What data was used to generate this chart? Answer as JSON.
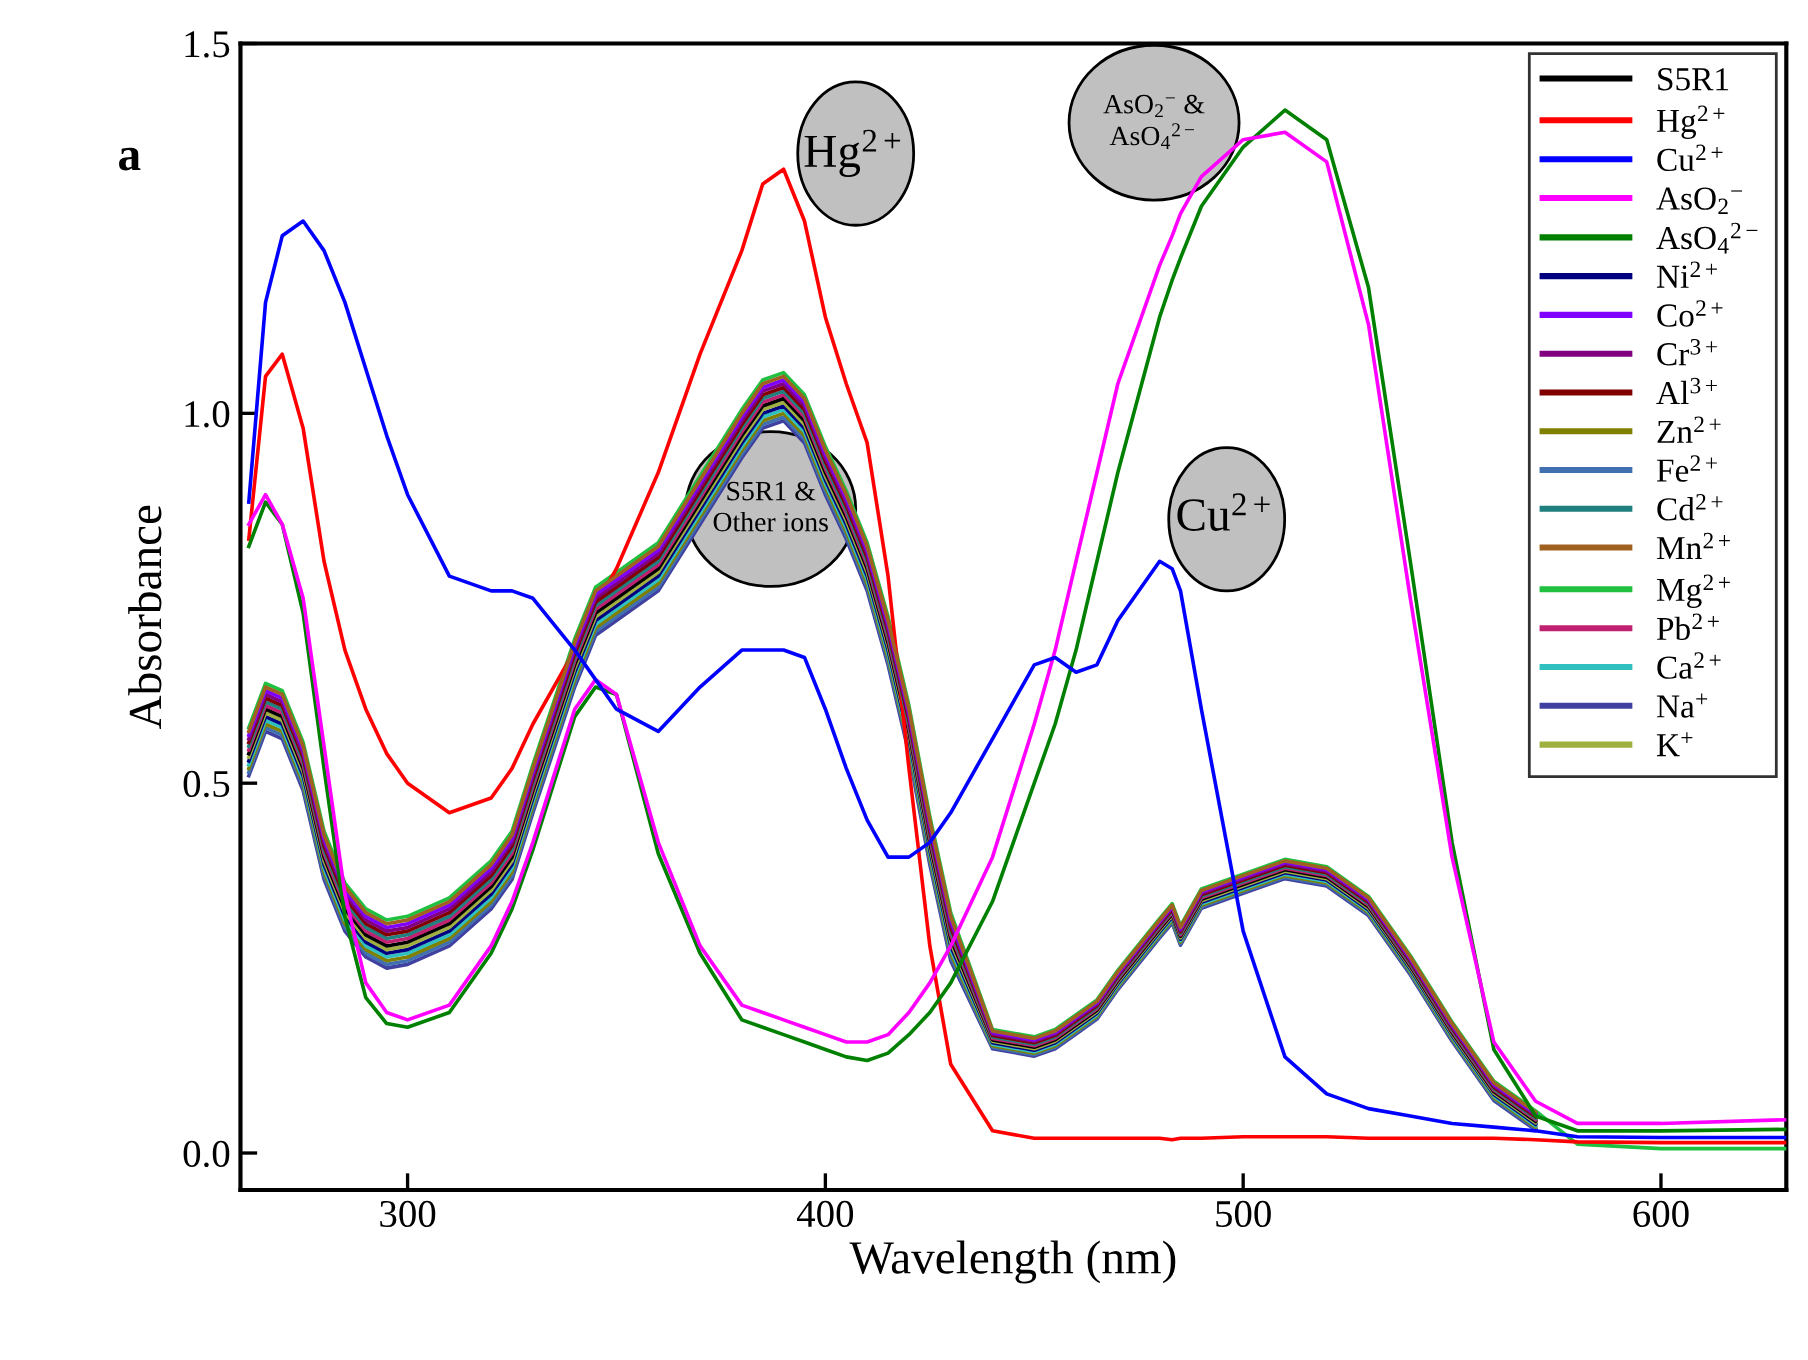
{
  "chart_data": {
    "type": "line",
    "xlabel": "Wavelength (nm)",
    "ylabel": "Absorbance",
    "xlim": [
      260,
      630
    ],
    "ylim": [
      -0.05,
      1.5
    ],
    "xticks": [
      300,
      400,
      500,
      600
    ],
    "yticks": [
      {
        "value": 0,
        "label": "0.0"
      },
      {
        "value": 0.5,
        "label": "0.5"
      },
      {
        "value": 1.0,
        "label": "1.0"
      },
      {
        "value": 1.5,
        "label": "1.5"
      }
    ],
    "grid": false,
    "legend": "top right",
    "marker": "none",
    "line_style": "solid",
    "annotations": [
      "a",
      "Hg$^{2+}$",
      "AsO$_{2}$$^{−}$ &\nAsO$_{4}$$^{2−}$",
      "S5R1 &\nOther ions",
      "Cu$^{2+}$"
    ],
    "x": [
      262,
      266,
      270,
      275,
      280,
      285,
      290,
      295,
      300,
      310,
      320,
      325,
      330,
      340,
      345,
      350,
      360,
      370,
      380,
      385,
      390,
      395,
      400,
      405,
      410,
      415,
      420,
      425,
      430,
      440,
      450,
      455,
      460,
      465,
      470,
      480,
      483,
      485,
      490,
      500,
      510,
      520,
      530,
      540,
      550,
      560,
      570,
      580,
      600,
      630
    ],
    "series": [
      {
        "name": "S5R1",
        "color": "#000000",
        "values": [
          0.54,
          0.6,
          0.59,
          0.52,
          0.4,
          0.33,
          0.295,
          0.28,
          0.285,
          0.31,
          0.36,
          0.4,
          0.49,
          0.66,
          0.73,
          0.75,
          0.79,
          0.88,
          0.97,
          1.01,
          1.02,
          0.99,
          0.92,
          0.86,
          0.79,
          0.69,
          0.57,
          0.42,
          0.29,
          0.153,
          0.143,
          0.153,
          0.173,
          0.193,
          0.233,
          0.303,
          0.323,
          0.293,
          0.343,
          0.363,
          0.383,
          0.373,
          0.333,
          0.253,
          0.163,
          0.083,
          0.043,
          null,
          null,
          null
        ]
      },
      {
        "name": "Hg$^{2+}$",
        "color": "#ff0000",
        "values": [
          0.83,
          1.05,
          1.08,
          0.98,
          0.8,
          0.68,
          0.6,
          0.54,
          0.5,
          0.46,
          0.48,
          0.52,
          0.58,
          0.68,
          0.74,
          0.79,
          0.92,
          1.08,
          1.22,
          1.31,
          1.33,
          1.26,
          1.13,
          1.04,
          0.96,
          0.78,
          0.52,
          0.28,
          0.12,
          0.03,
          0.02,
          0.02,
          0.02,
          0.02,
          0.02,
          0.02,
          0.018,
          0.02,
          0.02,
          0.022,
          0.022,
          0.022,
          0.02,
          0.02,
          0.02,
          0.02,
          0.018,
          0.015,
          0.014,
          0.014
        ]
      },
      {
        "name": "Cu$^{2+}$",
        "color": "#0000ff",
        "values": [
          0.88,
          1.15,
          1.24,
          1.26,
          1.22,
          1.15,
          1.06,
          0.97,
          0.89,
          0.78,
          0.76,
          0.76,
          0.75,
          0.68,
          0.64,
          0.6,
          0.57,
          0.63,
          0.68,
          0.68,
          0.68,
          0.67,
          0.6,
          0.52,
          0.45,
          0.4,
          0.4,
          0.42,
          0.46,
          0.56,
          0.66,
          0.67,
          0.65,
          0.66,
          0.72,
          0.8,
          0.79,
          0.76,
          0.6,
          0.3,
          0.13,
          0.08,
          0.06,
          0.05,
          0.04,
          0.035,
          0.03,
          0.022,
          0.021,
          0.021
        ]
      },
      {
        "name": "AsO$_{2}$$^{−}$",
        "color": "#ff00ff",
        "values": [
          0.85,
          0.89,
          0.85,
          0.75,
          0.55,
          0.35,
          0.23,
          0.19,
          0.18,
          0.2,
          0.28,
          0.34,
          0.42,
          0.6,
          0.64,
          0.62,
          0.42,
          0.28,
          0.2,
          0.19,
          0.18,
          0.17,
          0.16,
          0.15,
          0.15,
          0.16,
          0.19,
          0.23,
          0.28,
          0.4,
          0.58,
          0.68,
          0.8,
          0.92,
          1.04,
          1.2,
          1.24,
          1.27,
          1.32,
          1.37,
          1.38,
          1.34,
          1.12,
          0.75,
          0.4,
          0.15,
          0.07,
          0.04,
          0.04,
          0.045
        ]
      },
      {
        "name": "AsO$_{4}$$^{2−}$",
        "color": "#008000",
        "values": [
          0.82,
          0.88,
          0.85,
          0.73,
          0.52,
          0.32,
          0.21,
          0.175,
          0.17,
          0.19,
          0.27,
          0.33,
          0.41,
          0.59,
          0.63,
          0.62,
          0.405,
          0.27,
          0.18,
          0.17,
          0.16,
          0.15,
          0.14,
          0.13,
          0.125,
          0.135,
          0.16,
          0.19,
          0.23,
          0.34,
          0.5,
          0.58,
          0.68,
          0.8,
          0.92,
          1.13,
          1.18,
          1.21,
          1.28,
          1.36,
          1.41,
          1.37,
          1.17,
          0.8,
          0.42,
          0.14,
          0.05,
          0.03,
          0.03,
          0.032
        ]
      },
      {
        "name": "Ni$^{2+}$",
        "color": "#000080",
        "values": [
          0.53,
          0.59,
          0.58,
          0.51,
          0.39,
          0.32,
          0.285,
          0.27,
          0.275,
          0.3,
          0.35,
          0.39,
          0.48,
          0.65,
          0.72,
          0.74,
          0.78,
          0.87,
          0.96,
          1.0,
          1.01,
          0.98,
          0.91,
          0.85,
          0.78,
          0.68,
          0.56,
          0.41,
          0.28,
          0.149,
          0.139,
          0.149,
          0.169,
          0.189,
          0.229,
          0.299,
          0.319,
          0.289,
          0.339,
          0.359,
          0.379,
          0.369,
          0.329,
          0.249,
          0.159,
          0.079,
          0.039,
          null,
          null,
          null
        ]
      },
      {
        "name": "Co$^{2+}$",
        "color": "#8000ff",
        "values": [
          0.565,
          0.625,
          0.615,
          0.545,
          0.425,
          0.355,
          0.32,
          0.305,
          0.31,
          0.335,
          0.385,
          0.425,
          0.515,
          0.685,
          0.755,
          0.775,
          0.815,
          0.905,
          0.995,
          1.035,
          1.045,
          1.015,
          0.945,
          0.885,
          0.815,
          0.715,
          0.595,
          0.445,
          0.315,
          0.163,
          0.153,
          0.163,
          0.183,
          0.203,
          0.243,
          0.313,
          0.333,
          0.303,
          0.353,
          0.373,
          0.393,
          0.383,
          0.343,
          0.263,
          0.173,
          0.093,
          0.053,
          null,
          null,
          null
        ]
      },
      {
        "name": "Cr$^{3+}$",
        "color": "#800080",
        "values": [
          0.56,
          0.62,
          0.61,
          0.54,
          0.42,
          0.35,
          0.315,
          0.3,
          0.305,
          0.33,
          0.38,
          0.42,
          0.51,
          0.68,
          0.75,
          0.77,
          0.81,
          0.9,
          0.99,
          1.03,
          1.04,
          1.01,
          0.94,
          0.88,
          0.81,
          0.71,
          0.59,
          0.44,
          0.31,
          0.161,
          0.151,
          0.161,
          0.181,
          0.201,
          0.241,
          0.311,
          0.331,
          0.301,
          0.351,
          0.371,
          0.391,
          0.381,
          0.341,
          0.261,
          0.171,
          0.091,
          0.051,
          null,
          null,
          null
        ]
      },
      {
        "name": "Al$^{3+}$",
        "color": "#800000",
        "values": [
          0.555,
          0.615,
          0.605,
          0.535,
          0.415,
          0.345,
          0.31,
          0.295,
          0.3,
          0.325,
          0.375,
          0.415,
          0.505,
          0.675,
          0.745,
          0.765,
          0.805,
          0.895,
          0.985,
          1.025,
          1.035,
          1.005,
          0.935,
          0.875,
          0.805,
          0.705,
          0.585,
          0.435,
          0.305,
          0.159,
          0.149,
          0.159,
          0.179,
          0.199,
          0.239,
          0.309,
          0.329,
          0.299,
          0.349,
          0.369,
          0.389,
          0.379,
          0.339,
          0.259,
          0.169,
          0.089,
          0.049,
          null,
          null,
          null
        ]
      },
      {
        "name": "Zn$^{2+}$",
        "color": "#808000",
        "values": [
          0.52,
          0.58,
          0.57,
          0.5,
          0.38,
          0.31,
          0.275,
          0.26,
          0.265,
          0.29,
          0.34,
          0.38,
          0.47,
          0.64,
          0.71,
          0.73,
          0.77,
          0.86,
          0.95,
          0.99,
          1.0,
          0.97,
          0.9,
          0.84,
          0.77,
          0.67,
          0.55,
          0.4,
          0.27,
          0.145,
          0.135,
          0.145,
          0.165,
          0.185,
          0.225,
          0.295,
          0.315,
          0.285,
          0.335,
          0.355,
          0.375,
          0.365,
          0.325,
          0.245,
          0.155,
          0.075,
          0.035,
          null,
          null,
          null
        ]
      },
      {
        "name": "Fe$^{2+}$",
        "color": "#4070b0",
        "values": [
          0.515,
          0.575,
          0.565,
          0.495,
          0.375,
          0.305,
          0.27,
          0.255,
          0.26,
          0.285,
          0.335,
          0.375,
          0.465,
          0.635,
          0.705,
          0.725,
          0.765,
          0.855,
          0.945,
          0.985,
          0.995,
          0.965,
          0.895,
          0.835,
          0.765,
          0.665,
          0.545,
          0.395,
          0.265,
          0.143,
          0.133,
          0.143,
          0.163,
          0.183,
          0.223,
          0.293,
          0.313,
          0.283,
          0.333,
          0.353,
          0.373,
          0.363,
          0.323,
          0.243,
          0.153,
          0.073,
          0.033,
          null,
          null,
          null
        ]
      },
      {
        "name": "Cd$^{2+}$",
        "color": "#208080",
        "values": [
          0.55,
          0.61,
          0.6,
          0.53,
          0.41,
          0.34,
          0.305,
          0.29,
          0.295,
          0.32,
          0.37,
          0.41,
          0.5,
          0.67,
          0.74,
          0.76,
          0.8,
          0.89,
          0.98,
          1.02,
          1.03,
          1.0,
          0.93,
          0.87,
          0.8,
          0.7,
          0.58,
          0.43,
          0.3,
          0.157,
          0.147,
          0.157,
          0.177,
          0.197,
          0.237,
          0.307,
          0.327,
          0.297,
          0.347,
          0.367,
          0.387,
          0.377,
          0.337,
          0.257,
          0.167,
          0.087,
          0.047,
          null,
          null,
          null
        ]
      },
      {
        "name": "Mn$^{2+}$",
        "color": "#a06020",
        "values": [
          0.57,
          0.63,
          0.62,
          0.55,
          0.43,
          0.36,
          0.325,
          0.31,
          0.315,
          0.34,
          0.39,
          0.43,
          0.52,
          0.69,
          0.76,
          0.78,
          0.82,
          0.91,
          1.0,
          1.04,
          1.05,
          1.02,
          0.95,
          0.89,
          0.82,
          0.72,
          0.6,
          0.45,
          0.32,
          0.165,
          0.155,
          0.165,
          0.185,
          0.205,
          0.245,
          0.315,
          0.335,
          0.305,
          0.355,
          0.375,
          0.395,
          0.385,
          0.345,
          0.265,
          0.175,
          0.095,
          0.055,
          null,
          null,
          null
        ]
      },
      {
        "name": "Mg$^{2+}$",
        "color": "#20c040",
        "values": [
          0.575,
          0.635,
          0.625,
          0.555,
          0.435,
          0.365,
          0.33,
          0.315,
          0.32,
          0.345,
          0.395,
          0.435,
          0.525,
          0.695,
          0.765,
          0.785,
          0.825,
          0.915,
          1.005,
          1.045,
          1.055,
          1.025,
          0.955,
          0.895,
          0.825,
          0.725,
          0.605,
          0.455,
          0.325,
          0.167,
          0.157,
          0.167,
          0.187,
          0.207,
          0.247,
          0.317,
          0.337,
          0.307,
          0.357,
          0.377,
          0.397,
          0.387,
          0.347,
          0.267,
          0.177,
          0.097,
          0.057,
          0.012,
          0.006,
          0.006
        ]
      },
      {
        "name": "Pb$^{2+}$",
        "color": "#c02070",
        "values": [
          0.545,
          0.605,
          0.595,
          0.525,
          0.405,
          0.335,
          0.3,
          0.285,
          0.29,
          0.315,
          0.365,
          0.405,
          0.495,
          0.665,
          0.735,
          0.755,
          0.795,
          0.885,
          0.975,
          1.015,
          1.025,
          0.995,
          0.925,
          0.865,
          0.795,
          0.695,
          0.575,
          0.425,
          0.295,
          0.155,
          0.145,
          0.155,
          0.175,
          0.195,
          0.235,
          0.305,
          0.325,
          0.295,
          0.345,
          0.365,
          0.385,
          0.375,
          0.335,
          0.255,
          0.165,
          0.085,
          0.045,
          null,
          null,
          null
        ]
      },
      {
        "name": "Ca$^{2+}$",
        "color": "#30c0c0",
        "values": [
          0.525,
          0.585,
          0.575,
          0.505,
          0.385,
          0.315,
          0.28,
          0.265,
          0.27,
          0.295,
          0.345,
          0.385,
          0.475,
          0.645,
          0.715,
          0.735,
          0.775,
          0.865,
          0.955,
          0.995,
          1.005,
          0.975,
          0.905,
          0.845,
          0.775,
          0.675,
          0.555,
          0.405,
          0.275,
          0.147,
          0.137,
          0.147,
          0.167,
          0.187,
          0.227,
          0.297,
          0.317,
          0.287,
          0.337,
          0.357,
          0.377,
          0.367,
          0.327,
          0.247,
          0.157,
          0.077,
          0.037,
          null,
          null,
          null
        ]
      },
      {
        "name": "Na$^{+}$",
        "color": "#4040a0",
        "values": [
          0.51,
          0.57,
          0.56,
          0.49,
          0.37,
          0.3,
          0.265,
          0.25,
          0.255,
          0.28,
          0.33,
          0.37,
          0.46,
          0.63,
          0.7,
          0.72,
          0.76,
          0.85,
          0.94,
          0.98,
          0.99,
          0.96,
          0.89,
          0.83,
          0.76,
          0.66,
          0.54,
          0.39,
          0.26,
          0.141,
          0.131,
          0.141,
          0.161,
          0.181,
          0.221,
          0.291,
          0.311,
          0.281,
          0.331,
          0.351,
          0.371,
          0.361,
          0.321,
          0.241,
          0.151,
          0.071,
          0.031,
          null,
          null,
          null
        ]
      },
      {
        "name": "K$^{+}$",
        "color": "#a0b040",
        "values": [
          0.535,
          0.595,
          0.585,
          0.515,
          0.395,
          0.325,
          0.29,
          0.275,
          0.28,
          0.305,
          0.355,
          0.395,
          0.485,
          0.655,
          0.725,
          0.745,
          0.785,
          0.875,
          0.965,
          1.005,
          1.015,
          0.985,
          0.915,
          0.855,
          0.785,
          0.685,
          0.565,
          0.415,
          0.285,
          0.151,
          0.141,
          0.151,
          0.171,
          0.191,
          0.231,
          0.301,
          0.321,
          0.291,
          0.341,
          0.361,
          0.381,
          0.371,
          0.331,
          0.251,
          0.161,
          0.081,
          0.041,
          null,
          null,
          null
        ]
      }
    ]
  }
}
